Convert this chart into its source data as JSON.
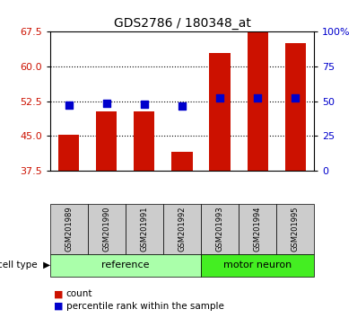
{
  "title": "GDS2786 / 180348_at",
  "samples": [
    "GSM201989",
    "GSM201990",
    "GSM201991",
    "GSM201992",
    "GSM201993",
    "GSM201994",
    "GSM201995"
  ],
  "groups": [
    "reference",
    "reference",
    "reference",
    "reference",
    "motor neuron",
    "motor neuron",
    "motor neuron"
  ],
  "count_values": [
    45.3,
    50.2,
    50.2,
    41.5,
    63.0,
    67.5,
    65.0
  ],
  "percentile_values": [
    47.0,
    48.5,
    47.5,
    46.5,
    52.5,
    52.5,
    52.5
  ],
  "ylim_left": [
    37.5,
    67.5
  ],
  "yticks_left": [
    37.5,
    45.0,
    52.5,
    60.0,
    67.5
  ],
  "ylim_right": [
    0,
    100
  ],
  "yticks_right": [
    0,
    25,
    50,
    75,
    100
  ],
  "yticklabels_right": [
    "0",
    "25",
    "50",
    "75",
    "100%"
  ],
  "bar_color": "#cc1100",
  "dot_color": "#0000cc",
  "ref_bg": "#aaffaa",
  "motor_bg": "#44ee22",
  "tick_label_color_left": "#cc1100",
  "tick_label_color_right": "#0000cc",
  "sample_bg": "#cccccc",
  "group_ref_label": "reference",
  "group_motor_label": "motor neuron",
  "legend_count": "count",
  "legend_percentile": "percentile rank within the sample",
  "bar_width": 0.55,
  "dot_size": 30
}
